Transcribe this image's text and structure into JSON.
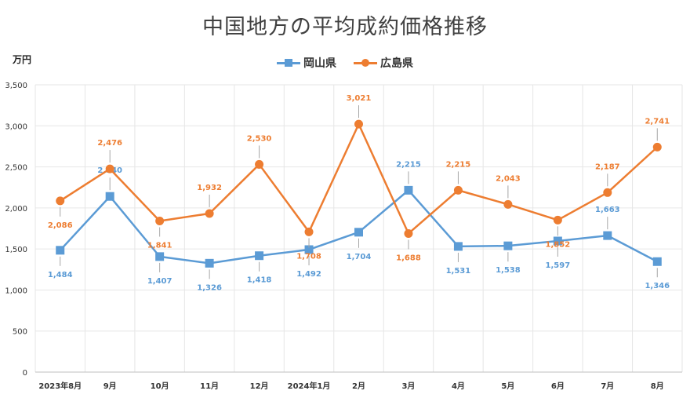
{
  "chart_data": {
    "type": "line",
    "title": "中国地方の平均成約価格推移",
    "ylabel": "万円",
    "ylim": [
      0,
      3500
    ],
    "yticks": [
      "0",
      "500",
      "1,000",
      "1,500",
      "2,000",
      "2,500",
      "3,000",
      "3,500"
    ],
    "categories": [
      "2023年8月",
      "9月",
      "10月",
      "11月",
      "12月",
      "2024年1月",
      "2月",
      "3月",
      "4月",
      "5月",
      "6月",
      "7月",
      "8月"
    ],
    "grid": true,
    "legend_position": "top",
    "series": [
      {
        "name": "岡山県",
        "color": "#5b9bd5",
        "marker": "square",
        "values": [
          1484,
          2140,
          1407,
          1326,
          1418,
          1492,
          1704,
          2215,
          1531,
          1538,
          1597,
          1663,
          1346
        ],
        "labels": [
          "1,484",
          "2,140",
          "1,407",
          "1,326",
          "1,418",
          "1,492",
          "1,704",
          "2,215",
          "1,531",
          "1,538",
          "1,597",
          "1,663",
          "1,346"
        ]
      },
      {
        "name": "広島県",
        "color": "#ed7d31",
        "marker": "circle",
        "values": [
          2086,
          2476,
          1841,
          1932,
          2530,
          1708,
          3021,
          1688,
          2215,
          2043,
          1852,
          2187,
          2741
        ],
        "labels": [
          "2,086",
          "2,476",
          "1,841",
          "1,932",
          "2,530",
          "1,708",
          "3,021",
          "1,688",
          "2,215",
          "2,043",
          "1,852",
          "2,187",
          "2,741"
        ]
      }
    ]
  }
}
